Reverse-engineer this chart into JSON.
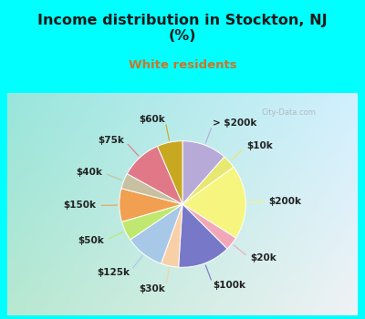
{
  "title": "Income distribution in Stockton, NJ\n(%)",
  "subtitle": "White residents",
  "title_color": "#1a1a1a",
  "subtitle_color": "#c8762b",
  "bg_top": "#00ffff",
  "labels": [
    "> $200k",
    "$10k",
    "$200k",
    "$20k",
    "$100k",
    "$30k",
    "$125k",
    "$50k",
    "$150k",
    "$40k",
    "$75k",
    "$60k"
  ],
  "values": [
    11.5,
    3.5,
    19.0,
    3.5,
    13.5,
    4.5,
    10.0,
    5.0,
    8.5,
    4.0,
    10.5,
    6.5
  ],
  "colors": [
    "#b8aad8",
    "#f5f580",
    "#f5f580",
    "#f0a8b8",
    "#7878c8",
    "#f8d0a8",
    "#a8c8e8",
    "#c0e870",
    "#f0a050",
    "#c8c0a0",
    "#e07888",
    "#c8a820"
  ],
  "label_color": "#222222",
  "label_fontsize": 7.5,
  "watermark": "City-Data.com"
}
